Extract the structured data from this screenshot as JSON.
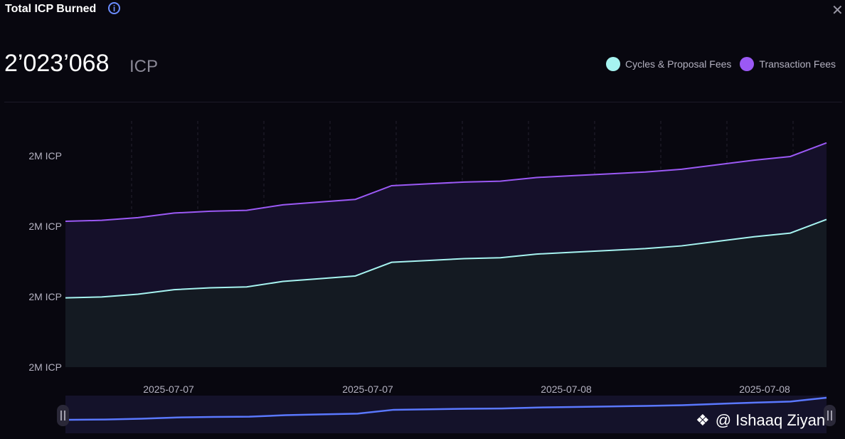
{
  "header": {
    "title": "Total ICP Burned",
    "info_glyph": "i",
    "close_glyph": "✕",
    "value": "2’023’068",
    "unit": "ICP"
  },
  "legend": [
    {
      "label": "Cycles & Proposal Fees",
      "color": "#a6f3f0"
    },
    {
      "label": "Transaction Fees",
      "color": "#9b59f5"
    }
  ],
  "watermark": {
    "text": "@ Ishaaq Ziyan",
    "icon": "binance-icon"
  },
  "chart_data": {
    "type": "area",
    "y_ticks": [
      "2M ICP",
      "2M ICP",
      "2M ICP",
      "2M ICP"
    ],
    "x_ticks": [
      "2025-07-07",
      "2025-07-07",
      "2025-07-08",
      "2025-07-08"
    ],
    "grid": "vertical-dashed",
    "legend_position": "top-right",
    "series": [
      {
        "name": "Cycles & Proposal Fees",
        "color": "#a6f3f0",
        "fill": "#141a22",
        "values": [
          2022580,
          2022585,
          2022600,
          2022625,
          2022635,
          2022640,
          2022670,
          2022685,
          2022700,
          2022775,
          2022785,
          2022795,
          2022800,
          2022820,
          2022830,
          2022840,
          2022850,
          2022865,
          2022890,
          2022915,
          2022935,
          2023010
        ]
      },
      {
        "name": "Transaction Fees",
        "color": "#9b59f5",
        "fill": "#15102a",
        "values": [
          2023000,
          2023005,
          2023020,
          2023045,
          2023055,
          2023060,
          2023090,
          2023105,
          2023120,
          2023195,
          2023205,
          2023215,
          2023220,
          2023240,
          2023250,
          2023260,
          2023270,
          2023285,
          2023310,
          2023335,
          2023355,
          2023430
        ]
      }
    ],
    "navigator": {
      "color": "#5a78ff",
      "values": [
        2023000,
        2023005,
        2023020,
        2023045,
        2023055,
        2023060,
        2023090,
        2023105,
        2023120,
        2023195,
        2023205,
        2023215,
        2023220,
        2023240,
        2023250,
        2023260,
        2023270,
        2023285,
        2023310,
        2023335,
        2023355,
        2023430
      ]
    }
  }
}
